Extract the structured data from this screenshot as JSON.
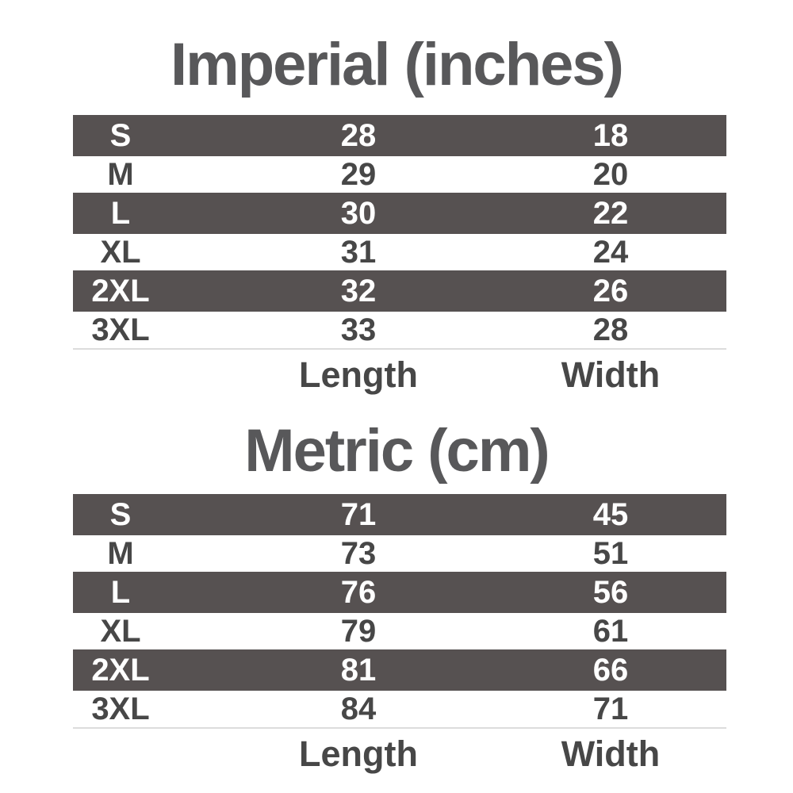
{
  "chart_data": [
    {
      "type": "table",
      "title": "Imperial (inches)",
      "footer_labels": [
        "Length",
        "Width"
      ],
      "rows": [
        [
          "S",
          28,
          18
        ],
        [
          "M",
          29,
          20
        ],
        [
          "L",
          30,
          22
        ],
        [
          "XL",
          31,
          24
        ],
        [
          "2XL",
          32,
          26
        ],
        [
          "3XL",
          33,
          28
        ]
      ]
    },
    {
      "type": "table",
      "title": "Metric (cm)",
      "footer_labels": [
        "Length",
        "Width"
      ],
      "rows": [
        [
          "S",
          71,
          45
        ],
        [
          "M",
          73,
          51
        ],
        [
          "L",
          76,
          56
        ],
        [
          "XL",
          79,
          61
        ],
        [
          "2XL",
          81,
          66
        ],
        [
          "3XL",
          84,
          71
        ]
      ]
    }
  ],
  "colors": {
    "background": "#ffffff",
    "row_dark_bg": "#565151",
    "row_dark_text": "#ffffff",
    "row_light_text": "#474747",
    "title_text": "#58585a",
    "separator": "#dcdcdc"
  }
}
